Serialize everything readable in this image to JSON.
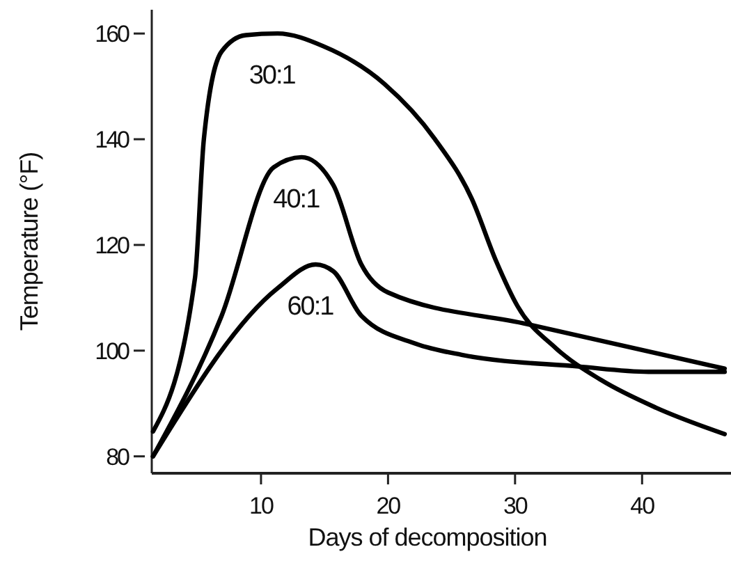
{
  "chart_data": {
    "type": "line",
    "xlabel": "Days of decomposition",
    "ylabel": "Temperature (°F)",
    "xlim": [
      1.4,
      47
    ],
    "ylim": [
      76.8,
      164.5
    ],
    "xticks": [
      10,
      20,
      30,
      40
    ],
    "yticks": [
      80,
      100,
      120,
      140,
      160
    ],
    "grid": false,
    "legend": false,
    "marker": "none",
    "line_style": "solid",
    "series": [
      {
        "name": "30:1",
        "color": "#000000",
        "x": [
          1.5,
          4.8,
          5.5,
          6.9,
          8.8,
          11.3,
          14.9,
          19.7,
          23.7,
          26.6,
          28.5,
          30.2,
          33.2,
          36.8,
          41.1,
          46.5
        ],
        "values": [
          84.7,
          113.7,
          140,
          156.6,
          159.7,
          160,
          157.6,
          150.5,
          140,
          128.7,
          117,
          108.4,
          100.5,
          94.4,
          89.2,
          84.2
        ]
      },
      {
        "name": "40:1",
        "color": "#000000",
        "x": [
          1.5,
          6.9,
          11,
          13.2,
          15.7,
          17.9,
          20,
          31,
          46.5
        ],
        "values": [
          80,
          106.6,
          134.7,
          136.6,
          131.3,
          116.3,
          111,
          105,
          96.6
        ]
      },
      {
        "name": "60:1",
        "color": "#000000",
        "x": [
          1.5,
          11.3,
          14.3,
          15.7,
          17.9,
          22.2,
          25.8,
          35,
          40.5,
          46.5
        ],
        "values": [
          80,
          111.8,
          116.3,
          115,
          106.6,
          101.3,
          99.2,
          97,
          96,
          96
        ]
      }
    ]
  }
}
